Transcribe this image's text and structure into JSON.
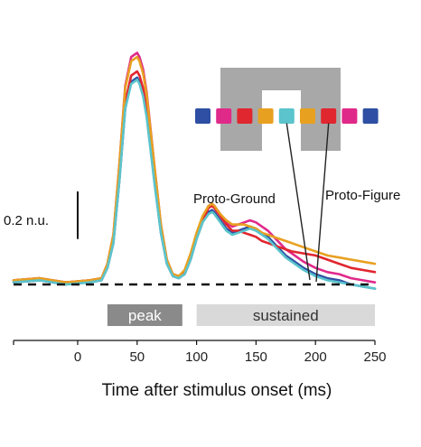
{
  "chart_data": {
    "type": "line",
    "xlabel": "Time after stimulus onset (ms)",
    "ylabel": "",
    "xlim": [
      -50,
      250
    ],
    "xticks": [
      0,
      50,
      100,
      150,
      200,
      250
    ],
    "xtick_labels": [
      "0",
      "50",
      "100",
      "150",
      "200",
      "250"
    ],
    "ylim": [
      -0.05,
      1.1
    ],
    "baseline": 0,
    "scale_bar": {
      "label": "0.2 n.u.",
      "value": 0.2
    },
    "annotations": [
      {
        "text": "Proto-Ground",
        "target_square": 4
      },
      {
        "text": "Proto-Figure",
        "target_square": 6
      }
    ],
    "windows": [
      {
        "label": "peak",
        "x_start": 25,
        "x_end": 88,
        "color": "#8a8a8a",
        "text_color": "#ffffff"
      },
      {
        "label": "sustained",
        "x_start": 100,
        "x_end": 250,
        "color": "#d9d9d9",
        "text_color": "#333333"
      }
    ],
    "stimulus": {
      "background_color": "#a8a8a8",
      "square_colors": [
        "#2e4fa3",
        "#e02a8a",
        "#e0262e",
        "#e8a020",
        "#5bc4cc",
        "#e8a020",
        "#e0262e",
        "#e02a8a",
        "#2e4fa3"
      ]
    },
    "x": [
      -50,
      -30,
      -10,
      10,
      20,
      25,
      30,
      35,
      40,
      45,
      50,
      52,
      55,
      58,
      60,
      65,
      70,
      75,
      80,
      85,
      90,
      95,
      100,
      105,
      110,
      113,
      115,
      120,
      125,
      130,
      135,
      140,
      145,
      150,
      155,
      160,
      165,
      170,
      175,
      180,
      190,
      200,
      210,
      220,
      230,
      240,
      250
    ],
    "series": [
      {
        "color": "#2e4fa3",
        "values": [
          0.01,
          0.02,
          0.0,
          0.01,
          0.02,
          0.08,
          0.2,
          0.5,
          0.85,
          0.98,
          1.0,
          0.98,
          0.92,
          0.82,
          0.72,
          0.48,
          0.25,
          0.1,
          0.04,
          0.03,
          0.05,
          0.12,
          0.22,
          0.3,
          0.35,
          0.36,
          0.35,
          0.31,
          0.27,
          0.25,
          0.26,
          0.27,
          0.28,
          0.27,
          0.25,
          0.23,
          0.2,
          0.17,
          0.14,
          0.12,
          0.08,
          0.05,
          0.03,
          0.02,
          0.0,
          -0.01,
          -0.02
        ]
      },
      {
        "color": "#e02a8a",
        "values": [
          0.02,
          0.03,
          0.01,
          0.02,
          0.03,
          0.1,
          0.24,
          0.58,
          0.96,
          1.1,
          1.12,
          1.1,
          1.04,
          0.93,
          0.82,
          0.55,
          0.29,
          0.12,
          0.05,
          0.04,
          0.06,
          0.14,
          0.24,
          0.32,
          0.38,
          0.39,
          0.38,
          0.34,
          0.3,
          0.28,
          0.29,
          0.3,
          0.31,
          0.3,
          0.28,
          0.26,
          0.23,
          0.2,
          0.17,
          0.15,
          0.11,
          0.08,
          0.06,
          0.05,
          0.03,
          0.02,
          0.01
        ]
      },
      {
        "color": "#e0262e",
        "values": [
          0.02,
          0.03,
          0.01,
          0.02,
          0.03,
          0.09,
          0.22,
          0.53,
          0.88,
          1.01,
          1.03,
          1.01,
          0.95,
          0.85,
          0.75,
          0.5,
          0.27,
          0.11,
          0.05,
          0.04,
          0.06,
          0.13,
          0.23,
          0.31,
          0.37,
          0.38,
          0.37,
          0.33,
          0.29,
          0.26,
          0.26,
          0.25,
          0.24,
          0.23,
          0.21,
          0.2,
          0.19,
          0.18,
          0.17,
          0.16,
          0.15,
          0.14,
          0.12,
          0.1,
          0.08,
          0.07,
          0.06
        ]
      },
      {
        "color": "#e8a020",
        "values": [
          0.02,
          0.03,
          0.01,
          0.02,
          0.03,
          0.1,
          0.24,
          0.58,
          0.95,
          1.08,
          1.1,
          1.08,
          1.02,
          0.92,
          0.81,
          0.55,
          0.29,
          0.12,
          0.05,
          0.04,
          0.07,
          0.15,
          0.25,
          0.33,
          0.38,
          0.39,
          0.38,
          0.34,
          0.31,
          0.29,
          0.29,
          0.29,
          0.28,
          0.27,
          0.25,
          0.24,
          0.23,
          0.22,
          0.21,
          0.2,
          0.18,
          0.16,
          0.14,
          0.13,
          0.12,
          0.11,
          0.1
        ]
      },
      {
        "color": "#5bc4cc",
        "values": [
          0.01,
          0.02,
          0.0,
          0.01,
          0.02,
          0.08,
          0.2,
          0.5,
          0.85,
          0.97,
          0.99,
          0.97,
          0.91,
          0.81,
          0.71,
          0.47,
          0.25,
          0.1,
          0.04,
          0.03,
          0.05,
          0.12,
          0.22,
          0.3,
          0.34,
          0.35,
          0.34,
          0.3,
          0.26,
          0.24,
          0.25,
          0.26,
          0.27,
          0.26,
          0.24,
          0.22,
          0.19,
          0.16,
          0.13,
          0.11,
          0.07,
          0.04,
          0.02,
          0.01,
          0.0,
          -0.01,
          -0.02
        ]
      }
    ]
  }
}
